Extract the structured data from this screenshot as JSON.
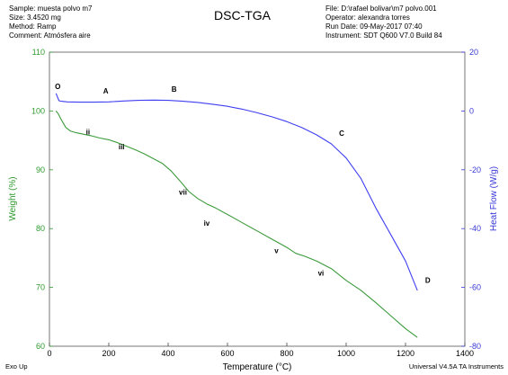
{
  "header": {
    "left_lines": [
      "Sample: muesta polvo m7",
      "Size:  3.4520 mg",
      "Method: Ramp",
      "Comment: Atmósfera aire"
    ],
    "title": "DSC-TGA",
    "right_lines": [
      "File: D:\\rafael bolivar\\m7 polvo.001",
      "Operator: alexandra torres",
      "Run Date: 09-May-2017 07:40",
      "Instrument: SDT Q600 V7.0 Build 84"
    ]
  },
  "footer": {
    "left": "Exo Up",
    "right": "Universal V4.5A TA Instruments"
  },
  "chart_data": {
    "type": "line",
    "xlabel": "Temperature (°C)",
    "ylabel_left": "Weight (%)",
    "ylabel_right": "Heat Flow (W/g)",
    "xlim": [
      0,
      1400
    ],
    "ylim_left": [
      60,
      110
    ],
    "ylim_right": [
      -80,
      20
    ],
    "x_ticks": [
      "0",
      "200",
      "400",
      "600",
      "800",
      "1000",
      "1200",
      "1400"
    ],
    "y_ticks_left": [
      "60",
      "70",
      "80",
      "90",
      "100",
      "110"
    ],
    "y_ticks_right": [
      "-80",
      "-60",
      "-40",
      "-20",
      "0",
      "20"
    ],
    "grid": false,
    "colors": {
      "weight": "#3c9a3c",
      "heatflow": "#3f3ff2",
      "left_axis": "#2f9a2f",
      "right_axis": "#3a3ad8"
    },
    "series": [
      {
        "axis": "left",
        "x": [
          22,
          30,
          40,
          55,
          70,
          90,
          110,
          140,
          170,
          200,
          230,
          260,
          290,
          320,
          350,
          380,
          410,
          440,
          470,
          500,
          530,
          560,
          600,
          650,
          700,
          750,
          800,
          830,
          860,
          900,
          950,
          1000,
          1050,
          1100,
          1150,
          1200,
          1240
        ],
        "y": [
          100.0,
          99.5,
          98.5,
          97.2,
          96.6,
          96.3,
          96.1,
          95.8,
          95.4,
          95.1,
          94.6,
          94.0,
          93.4,
          92.7,
          91.9,
          91.1,
          89.8,
          88.1,
          86.3,
          85.1,
          84.2,
          83.5,
          82.4,
          81.0,
          79.6,
          78.2,
          76.8,
          75.8,
          75.3,
          74.5,
          73.2,
          71.2,
          69.5,
          67.4,
          65.2,
          63.0,
          61.5
        ]
      },
      {
        "axis": "right",
        "x": [
          22,
          26,
          32,
          40,
          60,
          100,
          150,
          200,
          250,
          300,
          350,
          400,
          450,
          500,
          550,
          600,
          650,
          700,
          750,
          800,
          850,
          900,
          950,
          1000,
          1050,
          1100,
          1150,
          1200,
          1240
        ],
        "y": [
          6.0,
          5.0,
          3.5,
          3.3,
          3.1,
          3.0,
          3.0,
          3.1,
          3.4,
          3.6,
          3.7,
          3.6,
          3.3,
          2.9,
          2.3,
          1.6,
          0.6,
          -0.6,
          -2.0,
          -3.6,
          -5.6,
          -8.1,
          -11.2,
          -16.0,
          -23.0,
          -33.0,
          -42.0,
          -51.0,
          -61.0
        ]
      }
    ],
    "annotations": [
      {
        "label": "O",
        "x": 28,
        "y_right": 7.5
      },
      {
        "label": "A",
        "x": 190,
        "y_right": 6.0
      },
      {
        "label": "B",
        "x": 420,
        "y_right": 6.5
      },
      {
        "label": "C",
        "x": 985,
        "y_right": -8.5
      },
      {
        "label": "D",
        "x": 1275,
        "y_right": -58.5
      },
      {
        "label": "ii",
        "x": 130,
        "y_left": 96.0
      },
      {
        "label": "iii",
        "x": 243,
        "y_left": 93.5
      },
      {
        "label": "vii",
        "x": 450,
        "y_left": 85.8
      },
      {
        "label": "iv",
        "x": 530,
        "y_left": 80.5
      },
      {
        "label": "v",
        "x": 765,
        "y_left": 75.8
      },
      {
        "label": "vi",
        "x": 915,
        "y_left": 72.0
      }
    ]
  }
}
